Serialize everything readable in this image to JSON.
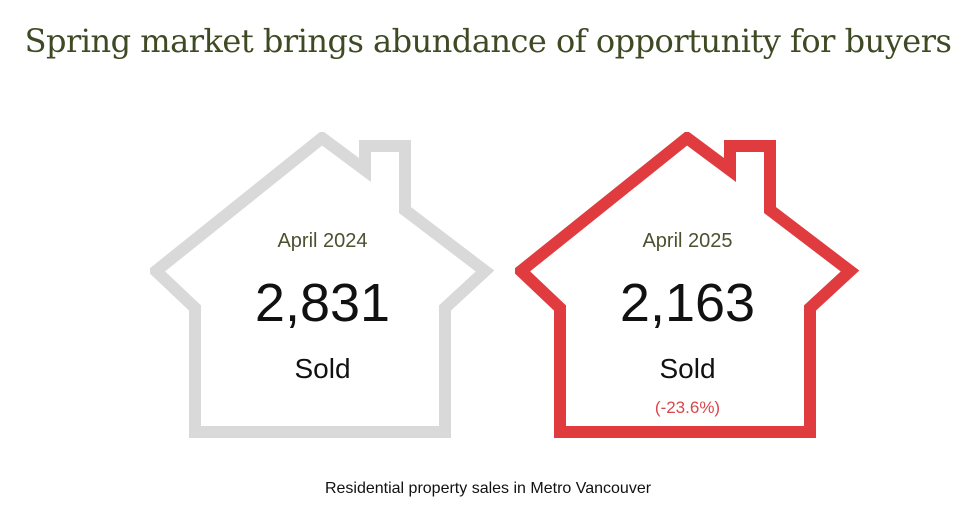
{
  "title": "Spring market brings abundance of opportunity for buyers",
  "caption": "Residential property sales in Metro Vancouver",
  "houses": [
    {
      "period": "April 2024",
      "count": "2,831",
      "unit": "Sold",
      "change": ""
    },
    {
      "period": "April 2025",
      "count": "2,163",
      "unit": "Sold",
      "change": "(-23.6%)"
    }
  ],
  "colors": {
    "title": "#3e4a23",
    "period": "#4a5230",
    "house_2024_outline": "#d9d9d9",
    "house_2025_outline": "#e03c40",
    "change": "#d9474b"
  },
  "icons": [
    "house-outline-icon",
    "house-outline-icon"
  ]
}
